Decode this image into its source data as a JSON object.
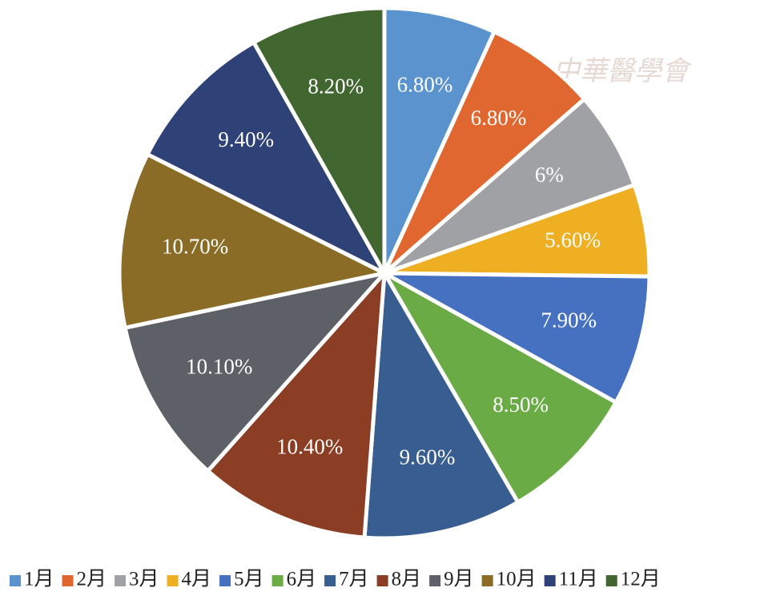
{
  "chart_data": {
    "type": "pie",
    "categories": [
      "1月",
      "2月",
      "3月",
      "4月",
      "5月",
      "6月",
      "7月",
      "8月",
      "9月",
      "10月",
      "11月",
      "12月"
    ],
    "values": [
      6.8,
      6.8,
      6,
      5.6,
      7.9,
      8.5,
      9.6,
      10.4,
      10.1,
      10.7,
      9.4,
      8.2
    ],
    "value_labels": [
      "6.80%",
      "6.80%",
      "6%",
      "5.60%",
      "7.90%",
      "8.50%",
      "9.60%",
      "10.40%",
      "10.10%",
      "10.70%",
      "9.40%",
      "8.20%"
    ],
    "colors": [
      "#5b93cf",
      "#e0672f",
      "#a0a1a4",
      "#eeaf22",
      "#4670c0",
      "#6aab45",
      "#385d90",
      "#8b3e24",
      "#5d6067",
      "#8a6c27",
      "#2f4278",
      "#41662f"
    ],
    "legend": "bottom",
    "watermark": "中華醫學會"
  }
}
